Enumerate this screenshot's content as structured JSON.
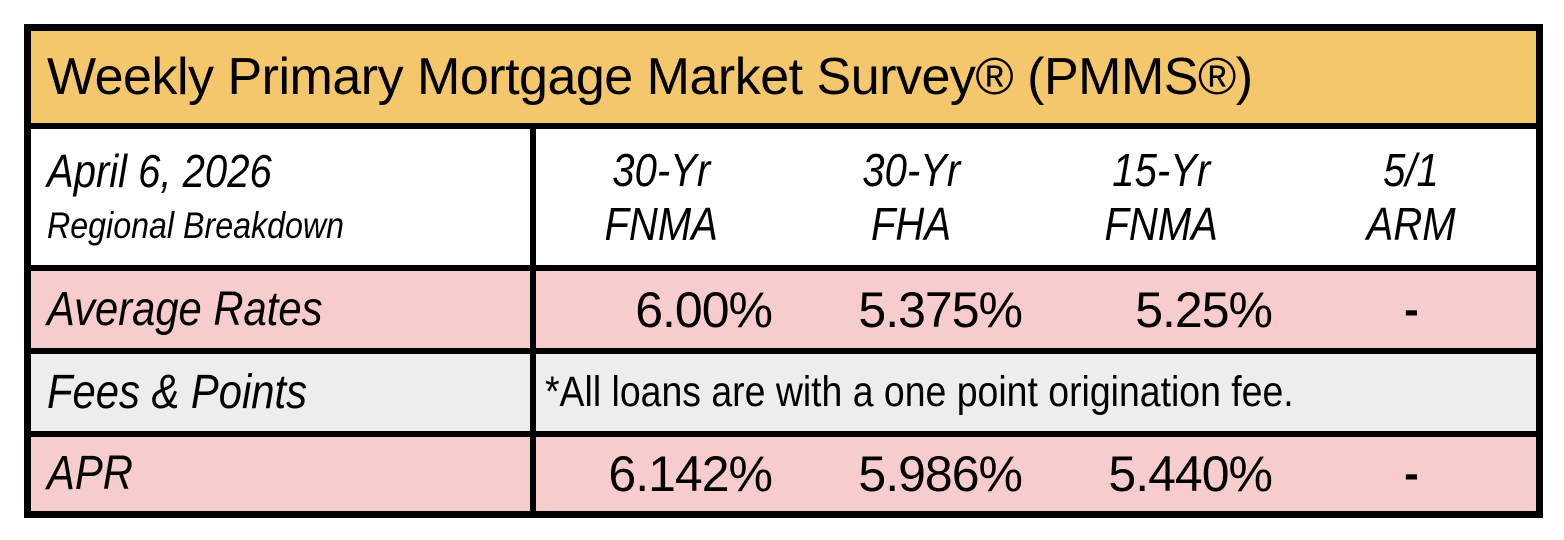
{
  "title": "Weekly Primary Mortgage Market Survey® (PMMS®)",
  "period": {
    "date": "April 6, 2026",
    "subtitle": "Regional Breakdown"
  },
  "columns": [
    {
      "term": "30-Yr",
      "product": "FNMA"
    },
    {
      "term": "30-Yr",
      "product": "FHA"
    },
    {
      "term": "15-Yr",
      "product": "FNMA"
    },
    {
      "term": "5/1",
      "product": "ARM"
    }
  ],
  "rows": {
    "average_rates": {
      "label": "Average Rates",
      "values": [
        "6.00%",
        "5.375%",
        "5.25%",
        "-"
      ]
    },
    "fees_points": {
      "label": "Fees & Points",
      "note": "*All loans are with a one point origination fee."
    },
    "apr": {
      "label": "APR",
      "values": [
        "6.142%",
        "5.986%",
        "5.440%",
        "-"
      ]
    }
  },
  "colors": {
    "title_bg": "#F5C76D",
    "rate_row_bg": "#F7CCCC",
    "fees_row_bg": "#EDEDEA",
    "border": "#000000",
    "text": "#000000"
  },
  "chart_data": {
    "type": "table",
    "title": "Weekly Primary Mortgage Market Survey® (PMMS®)",
    "subtitle": "April 6, 2026 — Regional Breakdown",
    "columns": [
      "30-Yr FNMA",
      "30-Yr FHA",
      "15-Yr FNMA",
      "5/1 ARM"
    ],
    "rows": [
      {
        "label": "Average Rates",
        "values": [
          "6.00%",
          "5.375%",
          "5.25%",
          "-"
        ]
      },
      {
        "label": "Fees & Points",
        "values": [
          "*All loans are with a one point origination fee."
        ]
      },
      {
        "label": "APR",
        "values": [
          "6.142%",
          "5.986%",
          "5.440%",
          "-"
        ]
      }
    ]
  }
}
